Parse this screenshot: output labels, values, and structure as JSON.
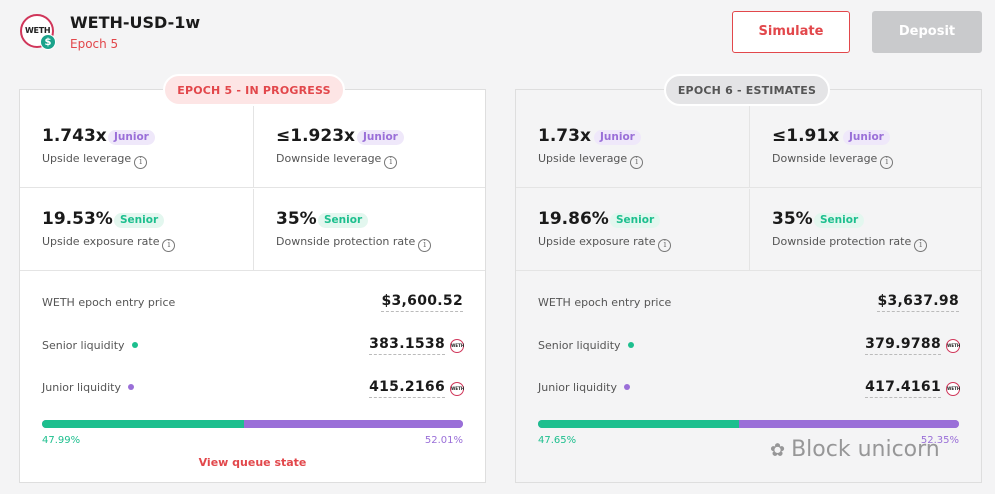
{
  "header": {
    "logo_text": "WETH",
    "coin_symbol": "$",
    "title": "WETH-USD-1w",
    "epoch": "Epoch 5",
    "simulate_label": "Simulate",
    "deposit_label": "Deposit"
  },
  "colors": {
    "accent_red": "#e2474b",
    "senior_green": "#1dbf8e",
    "junior_purple": "#9a6fd8",
    "disabled_gray": "#c9cacc"
  },
  "current": {
    "pill": "EPOCH 5 - IN PROGRESS",
    "upside_leverage": {
      "value": "1.743x",
      "badge": "Junior",
      "label": "Upside leverage"
    },
    "downside_leverage": {
      "value": "≤1.923x",
      "badge": "Junior",
      "label": "Downside leverage"
    },
    "upside_exposure": {
      "value": "19.53%",
      "badge": "Senior",
      "label": "Upside exposure rate"
    },
    "downside_protection": {
      "value": "35%",
      "badge": "Senior",
      "label": "Downside protection rate"
    },
    "entry_price_label": "WETH epoch entry price",
    "entry_price": "$3,600.52",
    "senior_liquidity_label": "Senior liquidity",
    "senior_liquidity": "383.1538",
    "junior_liquidity_label": "Junior liquidity",
    "junior_liquidity": "415.2166",
    "senior_pct_text": "47.99%",
    "junior_pct_text": "52.01%",
    "senior_fraction": 0.4799,
    "queue_link": "View queue state"
  },
  "estimate": {
    "pill": "EPOCH 6 - ESTIMATES",
    "upside_leverage": {
      "value": "1.73x",
      "badge": "Junior",
      "label": "Upside leverage"
    },
    "downside_leverage": {
      "value": "≤1.91x",
      "badge": "Junior",
      "label": "Downside leverage"
    },
    "upside_exposure": {
      "value": "19.86%",
      "badge": "Senior",
      "label": "Upside exposure rate"
    },
    "downside_protection": {
      "value": "35%",
      "badge": "Senior",
      "label": "Downside protection rate"
    },
    "entry_price_label": "WETH epoch entry price",
    "entry_price": "$3,637.98",
    "senior_liquidity_label": "Senior liquidity",
    "senior_liquidity": "379.9788",
    "junior_liquidity_label": "Junior liquidity",
    "junior_liquidity": "417.4161",
    "senior_pct_text": "47.65%",
    "junior_pct_text": "52.35%",
    "senior_fraction": 0.4765
  },
  "token_icon": {
    "text": "WETH",
    "name": "weth-token-icon"
  },
  "info_icon": {
    "glyph": "i"
  },
  "watermark": {
    "icon": "wechat-icon",
    "glyph": "✿",
    "text": "Block unicorn"
  }
}
